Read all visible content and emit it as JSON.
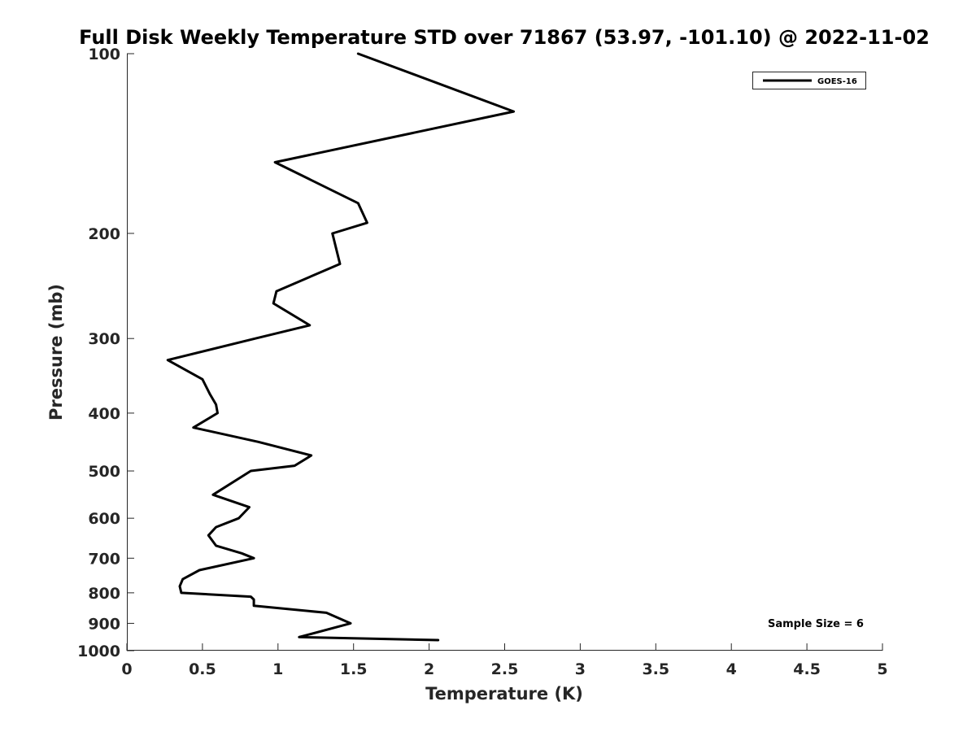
{
  "chart_data": {
    "type": "line",
    "title": "Full Disk Weekly Temperature STD over 71867 (53.97, -101.10) @ 2022-11-02",
    "xlabel": "Temperature (K)",
    "ylabel": "Pressure (mb)",
    "xlim": [
      0,
      5
    ],
    "ylim": [
      100,
      1000
    ],
    "y_scale": "log",
    "y_reversed": true,
    "grid": false,
    "legend_position": "top-right",
    "x_ticks": [
      "0",
      "0.5",
      "1",
      "1.5",
      "2",
      "2.5",
      "3",
      "3.5",
      "4",
      "4.5",
      "5"
    ],
    "y_ticks": [
      "100",
      "200",
      "300",
      "400",
      "500",
      "600",
      "700",
      "800",
      "900",
      "1000"
    ],
    "series": [
      {
        "name": "GOES-16",
        "color": "#000000",
        "x": [
          1.53,
          2.56,
          0.98,
          1.53,
          1.59,
          1.36,
          1.41,
          0.99,
          0.97,
          1.21,
          0.85,
          0.27,
          0.5,
          0.55,
          0.59,
          0.6,
          0.44,
          0.87,
          1.22,
          1.11,
          0.82,
          0.57,
          0.81,
          0.74,
          0.59,
          0.54,
          0.59,
          0.76,
          0.84,
          0.48,
          0.37,
          0.35,
          0.36,
          0.82,
          0.84,
          0.84,
          1.32,
          1.48,
          1.14,
          2.06
        ],
        "y": [
          100,
          125,
          152,
          178,
          192,
          200,
          225,
          250,
          262,
          285,
          300,
          326,
          351,
          372,
          387,
          400,
          423,
          447,
          471,
          490,
          500,
          548,
          575,
          600,
          621,
          641,
          667,
          687,
          700,
          733,
          759,
          780,
          800,
          812,
          821,
          841,
          864,
          900,
          949,
          960
        ]
      }
    ],
    "annotations": [
      "Sample Size = 6"
    ]
  }
}
